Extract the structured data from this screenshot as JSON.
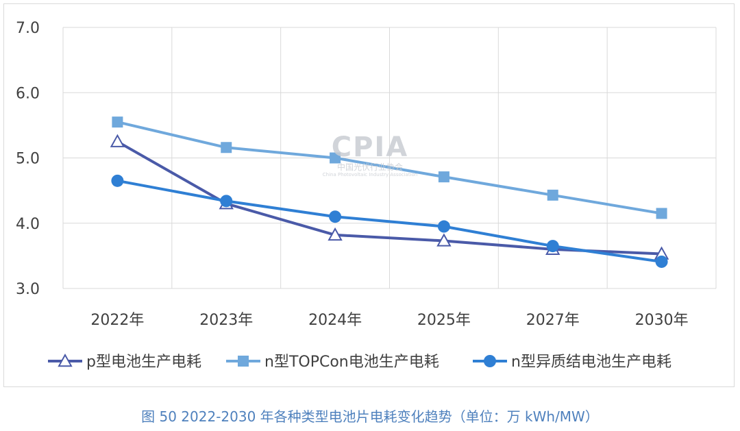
{
  "chart_data": {
    "type": "line",
    "categories": [
      "2022年",
      "2023年",
      "2024年",
      "2025年",
      "2027年",
      "2030年"
    ],
    "ylim": [
      3.0,
      7.0
    ],
    "yticks": [
      "3.0",
      "4.0",
      "5.0",
      "6.0",
      "7.0"
    ],
    "grid": true,
    "legend_position": "bottom",
    "series": [
      {
        "name": "p型电池生产电耗",
        "values": [
          5.25,
          4.3,
          3.82,
          3.73,
          3.6,
          3.53
        ],
        "color": "#4a5aa8",
        "marker": "triangle-open"
      },
      {
        "name": "n型TOPCon电池生产电耗",
        "values": [
          5.55,
          5.16,
          5.0,
          4.71,
          4.43,
          4.15
        ],
        "color": "#6fa8dc",
        "marker": "square"
      },
      {
        "name": "n型异质结电池生产电耗",
        "values": [
          4.65,
          4.34,
          4.1,
          3.95,
          3.65,
          3.41
        ],
        "color": "#2f7fd4",
        "marker": "circle"
      }
    ]
  },
  "watermark": {
    "logo": "CPIA",
    "name_cn": "中国光伏行业协会",
    "name_en": "China Photovoltaic Industry Association"
  },
  "caption": "图 50    2022-2030 年各种类型电池片电耗变化趋势（单位：万 kWh/MW）"
}
